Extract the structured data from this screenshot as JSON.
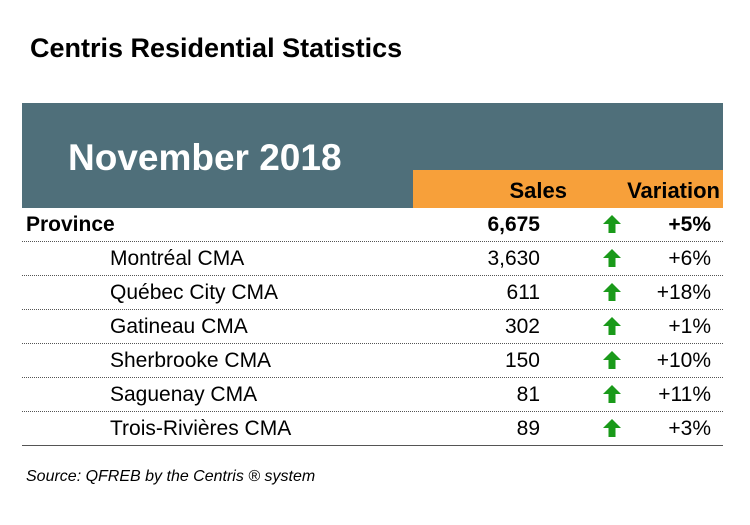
{
  "title": "Centris Residential Statistics",
  "period": "November 2018",
  "columns": {
    "sales": "Sales",
    "variation": "Variation"
  },
  "colors": {
    "header_slate": "#4f6f7a",
    "header_orange": "#f7a03a",
    "arrow_green": "#1a9a1a"
  },
  "rows": [
    {
      "name": "Province",
      "sales": "6,675",
      "trend_icon": "arrow-up",
      "variation": "+5%"
    },
    {
      "name": "Montréal CMA",
      "sales": "3,630",
      "trend_icon": "arrow-up",
      "variation": "+6%"
    },
    {
      "name": "Québec City CMA",
      "sales": "611",
      "trend_icon": "arrow-up",
      "variation": "+18%"
    },
    {
      "name": "Gatineau CMA",
      "sales": "302",
      "trend_icon": "arrow-up",
      "variation": "+1%"
    },
    {
      "name": "Sherbrooke CMA",
      "sales": "150",
      "trend_icon": "arrow-up",
      "variation": "+10%"
    },
    {
      "name": "Saguenay CMA",
      "sales": "81",
      "trend_icon": "arrow-up",
      "variation": "+11%"
    },
    {
      "name": "Trois-Rivières CMA",
      "sales": "89",
      "trend_icon": "arrow-up",
      "variation": "+3%"
    }
  ],
  "source": "Source: QFREB by the Centris ® system"
}
